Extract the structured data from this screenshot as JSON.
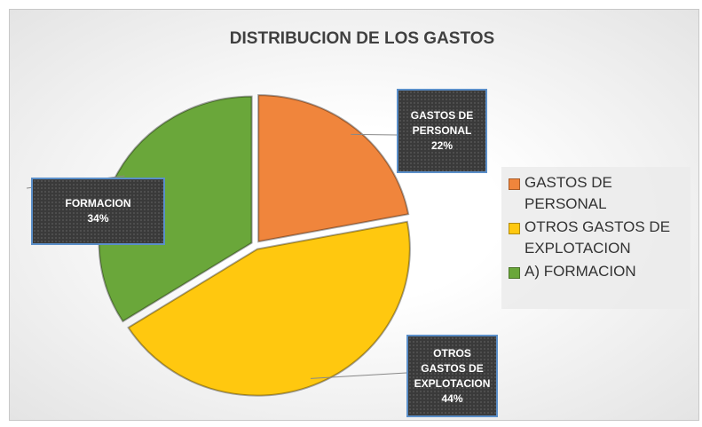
{
  "chart_data": {
    "type": "pie",
    "title": "DISTRIBUCION DE LOS GASTOS",
    "categories": [
      "GASTOS DE PERSONAL",
      "OTROS GASTOS DE EXPLOTACION",
      "A) FORMACION"
    ],
    "label_names": [
      "GASTOS DE PERSONAL",
      "OTROS GASTOS DE EXPLOTACION",
      "FORMACION"
    ],
    "values": [
      22,
      44,
      34
    ],
    "value_labels": [
      "22%",
      "44%",
      "34%"
    ],
    "colors": [
      "#f0853c",
      "#ffc80f",
      "#6aa73a"
    ],
    "legend": "right"
  }
}
